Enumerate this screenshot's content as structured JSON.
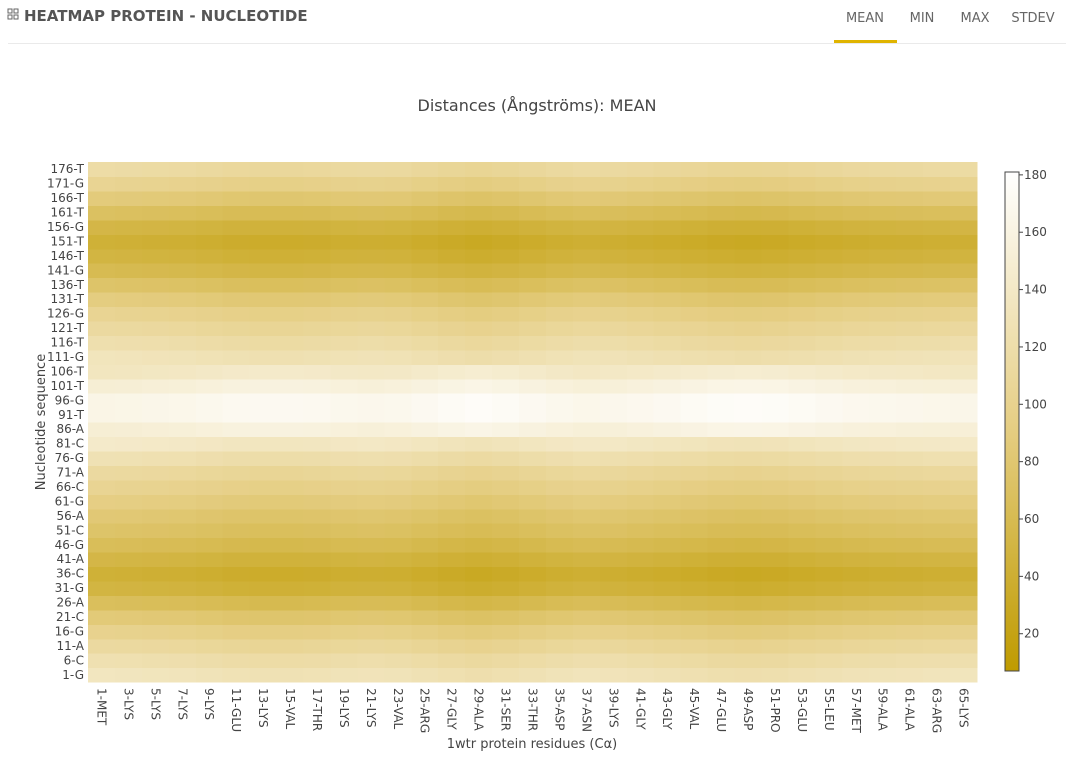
{
  "header": {
    "title": "HEATMAP PROTEIN - NUCLEOTIDE",
    "tabs": [
      "MEAN",
      "MIN",
      "MAX",
      "STDEV"
    ],
    "active_tab": 0
  },
  "chart_data": {
    "type": "heatmap",
    "title": "Distances (Ångströms): MEAN",
    "x_label": "1wtr protein residues (Cα)",
    "y_label": "Nucleotide sequence",
    "x": [
      "1-MET",
      "3-LYS",
      "5-LYS",
      "7-LYS",
      "9-LYS",
      "11-GLU",
      "13-LYS",
      "15-VAL",
      "17-THR",
      "19-LYS",
      "21-LYS",
      "23-VAL",
      "25-ARG",
      "27-GLY",
      "29-ALA",
      "31-SER",
      "33-THR",
      "35-ASP",
      "37-ASN",
      "39-LYS",
      "41-GLY",
      "43-GLY",
      "45-VAL",
      "47-GLU",
      "49-ASP",
      "51-PRO",
      "53-GLU",
      "55-LEU",
      "57-MET",
      "59-ALA",
      "61-ALA",
      "63-ARG",
      "65-LYS"
    ],
    "y": [
      "1-G",
      "6-C",
      "11-A",
      "16-G",
      "21-C",
      "26-A",
      "31-G",
      "36-C",
      "41-A",
      "46-G",
      "51-C",
      "56-A",
      "61-G",
      "66-C",
      "71-A",
      "76-G",
      "81-C",
      "86-A",
      "91-T",
      "96-G",
      "101-T",
      "106-T",
      "111-G",
      "116-T",
      "121-T",
      "126-G",
      "131-T",
      "136-T",
      "141-G",
      "146-T",
      "151-T",
      "156-G",
      "161-T",
      "166-T",
      "171-G",
      "176-T"
    ],
    "z": [
      [
        135,
        134,
        133,
        132,
        130,
        128,
        127,
        127,
        128,
        130,
        131,
        130,
        127,
        124,
        122,
        124,
        127,
        130,
        132,
        131,
        129,
        127,
        125,
        123,
        122,
        123,
        125,
        127,
        129,
        130,
        131,
        132,
        133
      ],
      [
        125,
        124,
        123,
        122,
        120,
        118,
        117,
        117,
        118,
        120,
        121,
        120,
        117,
        114,
        112,
        114,
        117,
        120,
        122,
        121,
        119,
        117,
        115,
        113,
        112,
        113,
        115,
        117,
        119,
        120,
        121,
        122,
        123
      ],
      [
        113,
        112,
        111,
        110,
        108,
        106,
        105,
        105,
        106,
        108,
        109,
        108,
        105,
        102,
        100,
        102,
        105,
        108,
        110,
        109,
        107,
        105,
        103,
        101,
        100,
        101,
        103,
        105,
        107,
        108,
        109,
        110,
        111
      ],
      [
        100,
        99,
        98,
        97,
        95,
        93,
        92,
        92,
        93,
        95,
        96,
        95,
        92,
        89,
        87,
        89,
        92,
        95,
        97,
        96,
        94,
        92,
        90,
        88,
        87,
        88,
        90,
        92,
        94,
        95,
        96,
        97,
        98
      ],
      [
        85,
        84,
        83,
        82,
        80,
        78,
        77,
        77,
        78,
        80,
        81,
        80,
        77,
        74,
        72,
        74,
        77,
        80,
        82,
        81,
        79,
        77,
        75,
        73,
        72,
        73,
        75,
        77,
        79,
        80,
        81,
        82,
        83
      ],
      [
        67,
        66,
        65,
        64,
        62,
        60,
        59,
        59,
        60,
        62,
        63,
        62,
        59,
        56,
        54,
        56,
        59,
        62,
        64,
        63,
        61,
        59,
        57,
        55,
        54,
        55,
        57,
        59,
        61,
        62,
        63,
        64,
        65
      ],
      [
        50,
        49,
        48,
        47,
        45,
        43,
        42,
        42,
        43,
        45,
        46,
        45,
        42,
        39,
        37,
        39,
        42,
        45,
        47,
        46,
        44,
        42,
        40,
        38,
        37,
        38,
        40,
        42,
        44,
        45,
        46,
        47,
        48
      ],
      [
        43,
        42,
        41,
        40,
        38,
        36,
        35,
        35,
        36,
        38,
        39,
        38,
        35,
        32,
        30,
        32,
        35,
        38,
        40,
        39,
        37,
        35,
        33,
        31,
        30,
        31,
        33,
        35,
        37,
        38,
        39,
        40,
        41
      ],
      [
        53,
        52,
        51,
        50,
        48,
        46,
        45,
        45,
        46,
        48,
        49,
        48,
        45,
        42,
        40,
        42,
        45,
        48,
        50,
        49,
        47,
        45,
        43,
        41,
        40,
        41,
        43,
        45,
        47,
        48,
        49,
        50,
        51
      ],
      [
        65,
        64,
        63,
        62,
        60,
        58,
        57,
        57,
        58,
        60,
        61,
        60,
        57,
        54,
        52,
        54,
        57,
        60,
        62,
        61,
        59,
        57,
        55,
        53,
        52,
        53,
        55,
        57,
        59,
        60,
        61,
        62,
        63
      ],
      [
        75,
        74,
        73,
        72,
        70,
        68,
        67,
        67,
        68,
        70,
        71,
        70,
        67,
        64,
        62,
        64,
        67,
        70,
        72,
        71,
        69,
        67,
        65,
        63,
        62,
        63,
        65,
        67,
        69,
        70,
        71,
        72,
        73
      ],
      [
        83,
        82,
        81,
        80,
        78,
        76,
        75,
        75,
        76,
        78,
        79,
        78,
        75,
        72,
        70,
        72,
        75,
        78,
        80,
        79,
        77,
        75,
        73,
        71,
        70,
        71,
        73,
        75,
        77,
        78,
        79,
        80,
        81
      ],
      [
        93,
        92,
        91,
        90,
        88,
        86,
        85,
        85,
        86,
        88,
        89,
        88,
        85,
        82,
        80,
        82,
        85,
        88,
        90,
        89,
        87,
        85,
        83,
        81,
        80,
        81,
        83,
        85,
        87,
        88,
        89,
        90,
        91
      ],
      [
        103,
        102,
        101,
        100,
        98,
        96,
        95,
        95,
        96,
        98,
        99,
        98,
        95,
        92,
        90,
        92,
        95,
        98,
        100,
        99,
        97,
        95,
        93,
        91,
        90,
        91,
        93,
        95,
        97,
        98,
        99,
        100,
        101
      ],
      [
        113,
        112,
        111,
        110,
        108,
        106,
        105,
        105,
        106,
        108,
        109,
        108,
        105,
        102,
        100,
        102,
        105,
        108,
        110,
        109,
        107,
        105,
        103,
        101,
        100,
        101,
        103,
        105,
        107,
        108,
        109,
        110,
        111
      ],
      [
        127,
        126,
        125,
        124,
        122,
        120,
        119,
        119,
        120,
        122,
        123,
        122,
        119,
        116,
        114,
        116,
        119,
        122,
        124,
        123,
        121,
        119,
        117,
        115,
        114,
        115,
        117,
        119,
        121,
        122,
        123,
        124,
        125
      ],
      [
        143,
        142,
        141,
        140,
        138,
        136,
        135,
        135,
        136,
        138,
        139,
        138,
        135,
        132,
        130,
        132,
        135,
        138,
        140,
        139,
        137,
        135,
        133,
        131,
        130,
        131,
        133,
        135,
        137,
        138,
        139,
        140,
        141
      ],
      [
        150,
        151,
        152,
        153,
        155,
        157,
        158,
        158,
        157,
        155,
        154,
        155,
        158,
        161,
        163,
        161,
        158,
        155,
        153,
        154,
        156,
        158,
        160,
        162,
        163,
        162,
        160,
        158,
        156,
        155,
        154,
        153,
        152
      ],
      [
        163,
        164,
        165,
        166,
        168,
        170,
        171,
        171,
        170,
        168,
        167,
        168,
        171,
        174,
        176,
        174,
        171,
        168,
        166,
        167,
        169,
        171,
        173,
        175,
        176,
        175,
        173,
        171,
        169,
        168,
        167,
        166,
        165
      ],
      [
        163,
        164,
        165,
        166,
        168,
        170,
        171,
        171,
        170,
        168,
        167,
        168,
        171,
        174,
        176,
        174,
        171,
        168,
        166,
        167,
        169,
        171,
        173,
        175,
        176,
        175,
        173,
        171,
        169,
        168,
        167,
        166,
        165
      ],
      [
        150,
        151,
        152,
        153,
        155,
        157,
        158,
        158,
        157,
        155,
        154,
        155,
        158,
        161,
        163,
        161,
        158,
        155,
        153,
        154,
        156,
        158,
        160,
        162,
        163,
        162,
        160,
        158,
        156,
        155,
        154,
        153,
        152
      ],
      [
        135,
        136,
        137,
        138,
        140,
        142,
        143,
        143,
        142,
        140,
        139,
        140,
        143,
        146,
        148,
        146,
        143,
        140,
        138,
        139,
        141,
        143,
        145,
        147,
        148,
        147,
        145,
        143,
        141,
        140,
        139,
        138,
        137
      ],
      [
        133,
        132,
        131,
        130,
        128,
        126,
        125,
        125,
        126,
        128,
        129,
        128,
        125,
        122,
        120,
        122,
        125,
        128,
        130,
        129,
        127,
        125,
        123,
        121,
        120,
        121,
        123,
        125,
        127,
        128,
        129,
        130,
        131
      ],
      [
        123,
        122,
        121,
        120,
        118,
        116,
        115,
        115,
        116,
        118,
        119,
        118,
        115,
        112,
        110,
        112,
        115,
        118,
        120,
        119,
        117,
        115,
        113,
        111,
        110,
        111,
        113,
        115,
        117,
        118,
        119,
        120,
        121
      ],
      [
        113,
        112,
        111,
        110,
        108,
        106,
        105,
        105,
        106,
        108,
        109,
        108,
        105,
        102,
        100,
        102,
        105,
        108,
        110,
        109,
        107,
        105,
        103,
        101,
        100,
        101,
        103,
        105,
        107,
        108,
        109,
        110,
        111
      ],
      [
        103,
        102,
        101,
        100,
        98,
        96,
        95,
        95,
        96,
        98,
        99,
        98,
        95,
        92,
        90,
        92,
        95,
        98,
        100,
        99,
        97,
        95,
        93,
        91,
        90,
        91,
        93,
        95,
        97,
        98,
        99,
        100,
        101
      ],
      [
        90,
        89,
        88,
        87,
        85,
        83,
        82,
        82,
        83,
        85,
        86,
        85,
        82,
        79,
        77,
        79,
        82,
        85,
        87,
        86,
        84,
        82,
        80,
        78,
        77,
        78,
        80,
        82,
        84,
        85,
        86,
        87,
        88
      ],
      [
        75,
        74,
        73,
        72,
        70,
        68,
        67,
        67,
        68,
        70,
        71,
        70,
        67,
        64,
        62,
        64,
        67,
        70,
        72,
        71,
        69,
        67,
        65,
        63,
        62,
        63,
        65,
        67,
        69,
        70,
        71,
        72,
        73
      ],
      [
        60,
        59,
        58,
        57,
        55,
        53,
        52,
        52,
        53,
        55,
        56,
        55,
        52,
        49,
        47,
        49,
        52,
        55,
        57,
        56,
        54,
        52,
        50,
        48,
        47,
        48,
        50,
        52,
        54,
        55,
        56,
        57,
        58
      ],
      [
        50,
        49,
        48,
        47,
        45,
        43,
        42,
        42,
        43,
        45,
        46,
        45,
        42,
        39,
        37,
        39,
        42,
        45,
        47,
        46,
        44,
        42,
        40,
        38,
        37,
        38,
        40,
        42,
        44,
        45,
        46,
        47,
        48
      ],
      [
        43,
        42,
        41,
        40,
        38,
        36,
        35,
        35,
        36,
        38,
        39,
        38,
        35,
        32,
        30,
        32,
        35,
        38,
        40,
        39,
        37,
        35,
        33,
        31,
        30,
        31,
        33,
        35,
        37,
        38,
        39,
        40,
        41
      ],
      [
        53,
        52,
        51,
        50,
        48,
        46,
        45,
        45,
        46,
        48,
        49,
        48,
        45,
        42,
        40,
        42,
        45,
        48,
        50,
        49,
        47,
        45,
        43,
        41,
        40,
        41,
        43,
        45,
        47,
        48,
        49,
        50,
        51
      ],
      [
        70,
        69,
        68,
        67,
        65,
        63,
        62,
        62,
        63,
        65,
        66,
        65,
        62,
        59,
        57,
        59,
        62,
        65,
        67,
        66,
        64,
        62,
        60,
        58,
        57,
        58,
        60,
        62,
        64,
        65,
        66,
        67,
        68
      ],
      [
        87,
        86,
        85,
        84,
        82,
        80,
        79,
        79,
        80,
        82,
        83,
        82,
        79,
        76,
        74,
        76,
        79,
        82,
        84,
        83,
        81,
        79,
        77,
        75,
        74,
        75,
        77,
        79,
        81,
        82,
        83,
        84,
        85
      ],
      [
        103,
        102,
        101,
        100,
        98,
        96,
        95,
        95,
        96,
        98,
        99,
        98,
        95,
        92,
        90,
        92,
        95,
        98,
        100,
        99,
        97,
        95,
        93,
        91,
        90,
        91,
        93,
        95,
        97,
        98,
        99,
        100,
        101
      ],
      [
        117,
        116,
        115,
        114,
        112,
        110,
        109,
        109,
        110,
        112,
        113,
        112,
        109,
        106,
        104,
        106,
        109,
        112,
        114,
        113,
        111,
        109,
        107,
        105,
        104,
        105,
        107,
        109,
        111,
        112,
        113,
        114,
        115
      ]
    ],
    "zlim": [
      7,
      181
    ],
    "zticks": [
      20,
      40,
      60,
      80,
      100,
      120,
      140,
      160,
      180
    ],
    "colorscale": [
      [
        0,
        "#bf9b00"
      ],
      [
        0.5,
        "#e6cf86"
      ],
      [
        1,
        "#ffffff"
      ]
    ]
  }
}
